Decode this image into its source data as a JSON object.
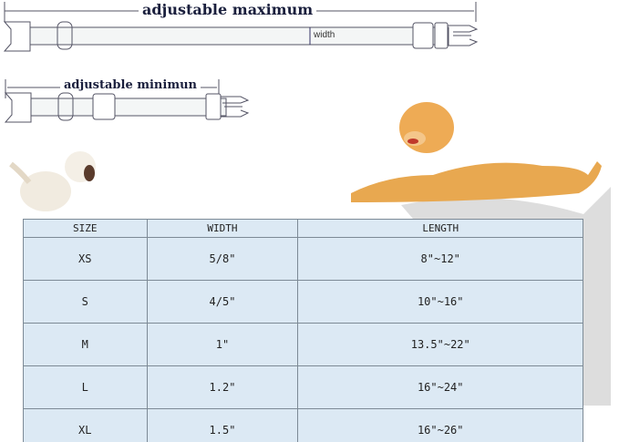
{
  "collar": {
    "max_label": "adjustable maximum",
    "min_label": "adjustable minimun",
    "width_label": "width"
  },
  "size_table": {
    "headers": [
      "SIZE",
      "WIDTH",
      "LENGTH"
    ],
    "rows": [
      [
        "XS",
        "5/8\"",
        "8\"~12\""
      ],
      [
        "S",
        "4/5\"",
        "10\"~16\""
      ],
      [
        "M",
        "1\"",
        "13.5\"~22\""
      ],
      [
        "L",
        "1.2\"",
        "16\"~24\""
      ],
      [
        "XL",
        "1.5\"",
        "16\"~26\""
      ]
    ]
  }
}
